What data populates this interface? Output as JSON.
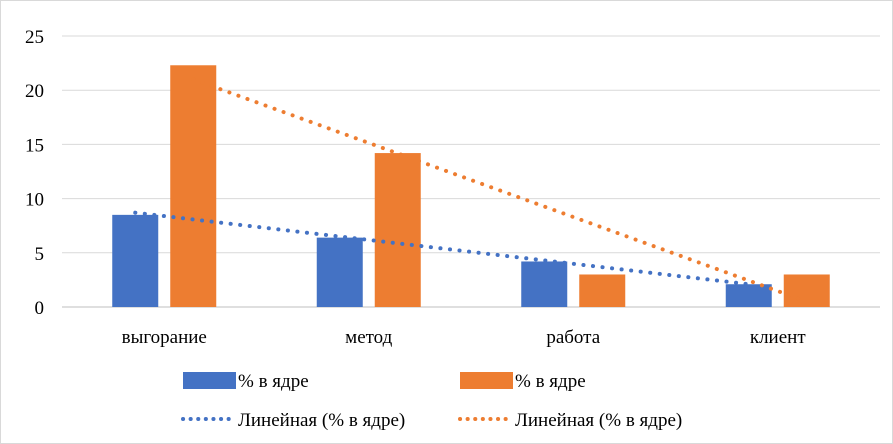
{
  "chart_data": {
    "type": "bar",
    "categories": [
      "выгорание",
      "метод",
      "работа",
      "клиент"
    ],
    "series": [
      {
        "name": "% в ядре",
        "values": [
          8.5,
          6.4,
          4.2,
          2.1
        ],
        "color": "#4472C4"
      },
      {
        "name": "% в ядре",
        "values": [
          22.3,
          14.2,
          3.0,
          3.0
        ],
        "color": "#ED7D31"
      }
    ],
    "trendlines": [
      {
        "name": "Линейная (% в ядре)",
        "series_index": 0,
        "style": "dotted",
        "color": "#4472C4",
        "start": 8.7,
        "end": 2.1
      },
      {
        "name": "Линейная (% в ядре)",
        "series_index": 1,
        "style": "dotted",
        "color": "#ED7D31",
        "start": 21.0,
        "end": 0.5
      }
    ],
    "yticks": [
      0,
      5,
      10,
      15,
      20,
      25
    ],
    "ylim": [
      0,
      25
    ],
    "grid": true,
    "legend_position": "bottom"
  }
}
